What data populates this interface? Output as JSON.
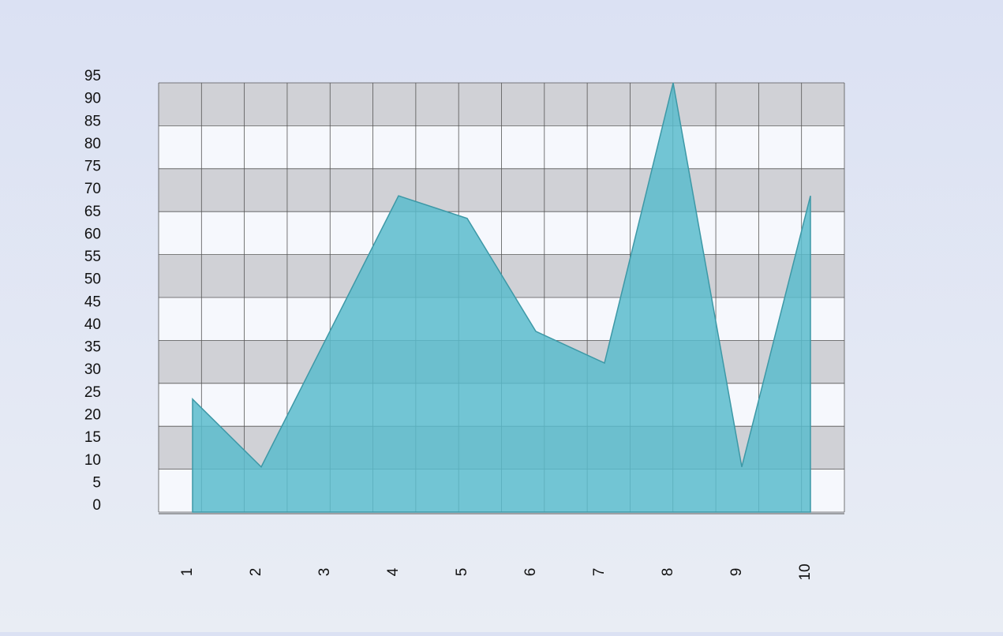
{
  "chart_data": {
    "type": "area",
    "categories": [
      "1",
      "2",
      "3",
      "4",
      "5",
      "6",
      "7",
      "8",
      "9",
      "10"
    ],
    "values": [
      25,
      10,
      40,
      70,
      65,
      40,
      33,
      95,
      10,
      70
    ],
    "color": "#5bbccc",
    "ylim": [
      0,
      95
    ],
    "yticks": [
      0,
      5,
      10,
      15,
      20,
      25,
      30,
      35,
      40,
      45,
      50,
      55,
      60,
      65,
      70,
      75,
      80,
      85,
      90,
      95
    ]
  }
}
